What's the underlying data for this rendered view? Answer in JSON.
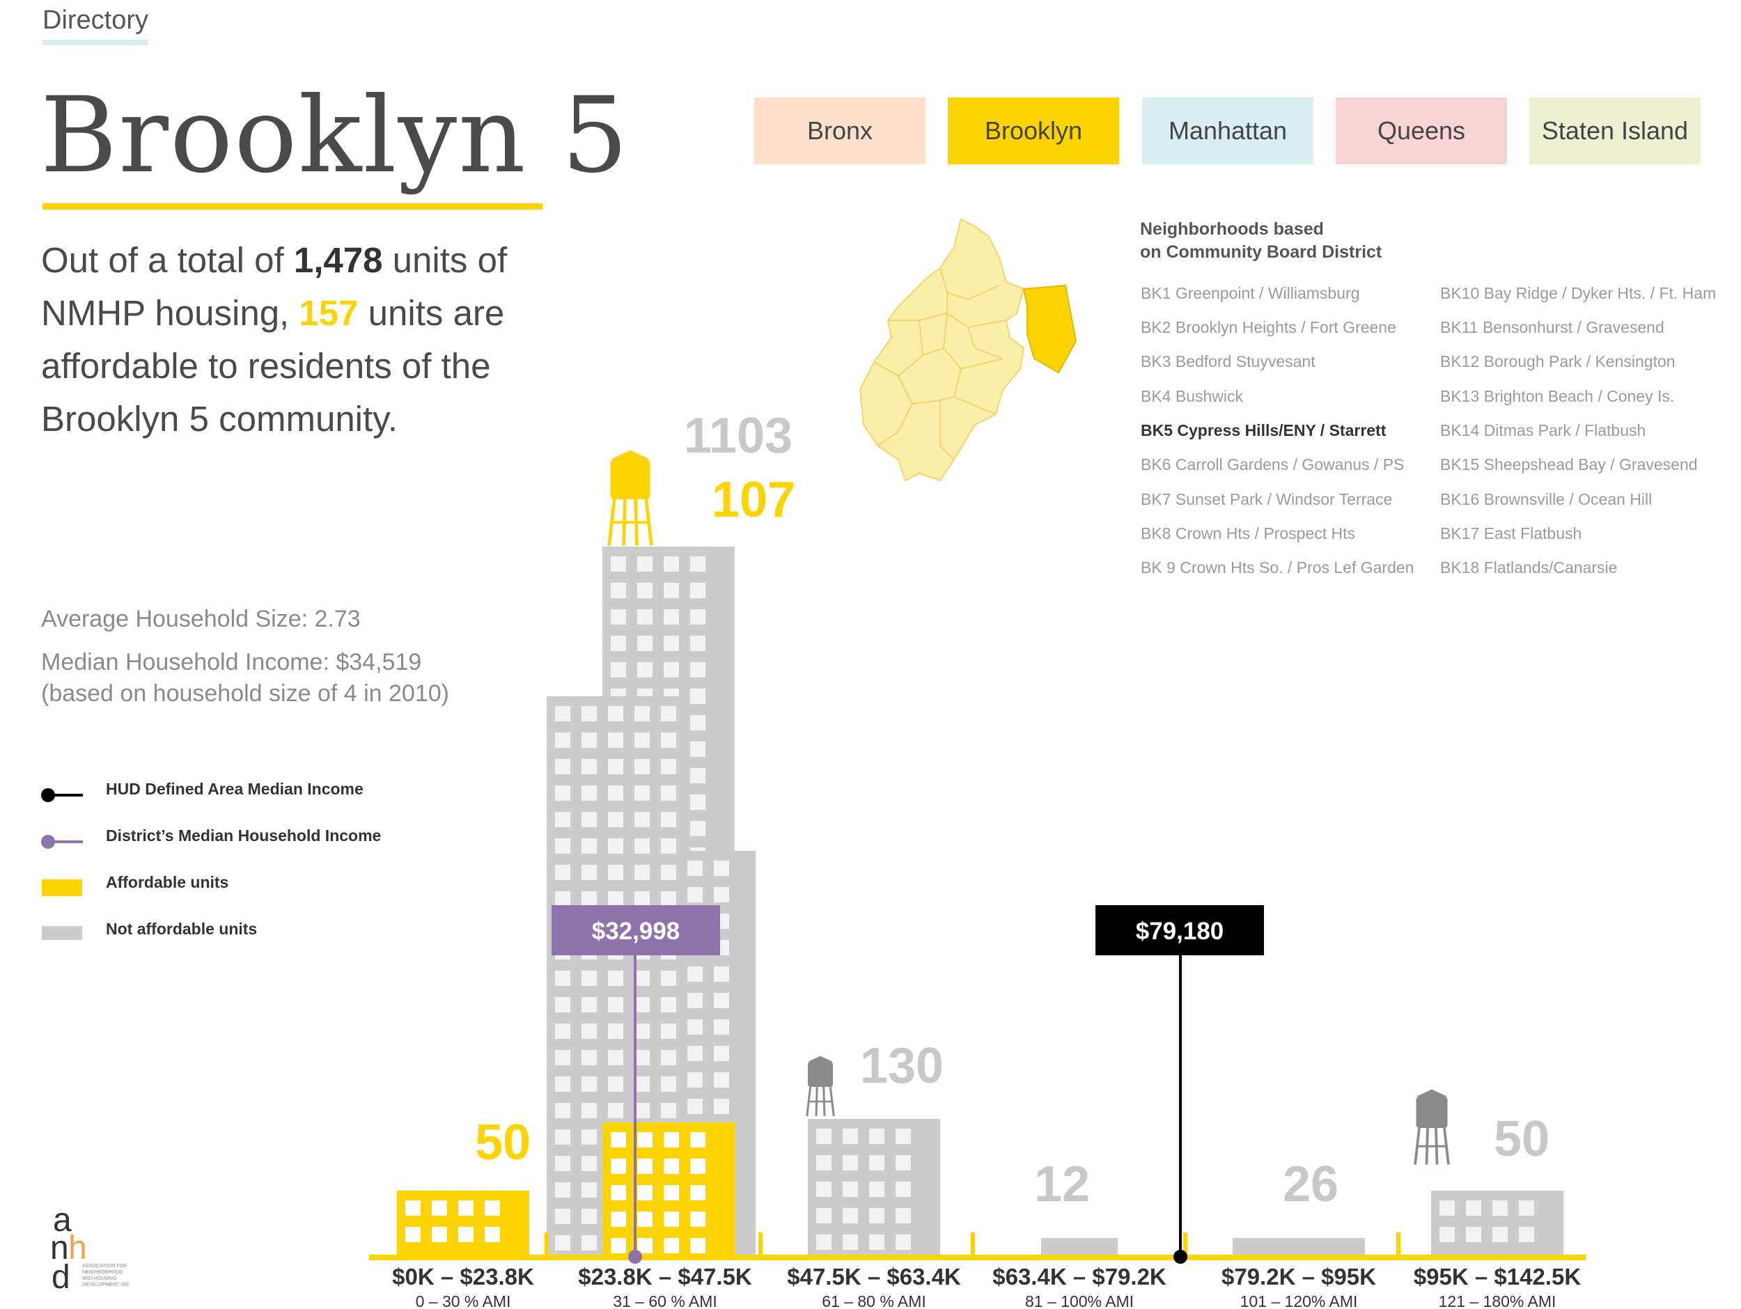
{
  "header": {
    "directory_label": "Directory",
    "title": "Brooklyn 5"
  },
  "summary": {
    "prefix": "Out of a total of ",
    "total_units": "1,478",
    "middle": " units of NMHP housing, ",
    "affordable_units": "157",
    "suffix": " units are affordable to residents of the Brooklyn 5 community."
  },
  "stats": {
    "household_size": "Average Household Size: 2.73",
    "median_income": "Median Household Income: $34,519",
    "median_note": "(based on household size of 4 in 2010)"
  },
  "boroughs": [
    {
      "label": "Bronx",
      "color": "#fde0cc",
      "selected": false
    },
    {
      "label": "Brooklyn",
      "color": "#fdd300",
      "selected": true
    },
    {
      "label": "Manhattan",
      "color": "#d8eef1",
      "selected": false
    },
    {
      "label": "Queens",
      "color": "#f8d3d5",
      "selected": false
    },
    {
      "label": "Staten Island",
      "color": "#edf1d2",
      "selected": false
    }
  ],
  "neighborhoods": {
    "heading_line1": "Neighborhoods based",
    "heading_line2": "on Community Board District",
    "left": [
      "BK1 Greenpoint / Williamsburg",
      "BK2 Brooklyn Heights / Fort Greene",
      "BK3 Bedford Stuyvesant",
      "BK4 Bushwick",
      "BK5 Cypress Hills/ENY / Starrett",
      "BK6 Carroll Gardens / Gowanus / PS",
      "BK7 Sunset Park / Windsor Terrace",
      "BK8 Crown Hts / Prospect Hts",
      "BK 9 Crown Hts So. / Pros Lef Garden"
    ],
    "right": [
      "BK10 Bay Ridge / Dyker Hts. / Ft. Ham",
      "BK11 Bensonhurst / Gravesend",
      "BK12 Borough Park / Kensington",
      "BK13 Brighton Beach / Coney Is.",
      "BK14 Ditmas Park / Flatbush",
      "BK15 Sheepshead Bay / Gravesend",
      "BK16 Brownsville / Ocean Hill",
      "BK17 East Flatbush",
      "BK18 Flatlands/Canarsie"
    ],
    "selected": "BK5 Cypress Hills/ENY / Starrett"
  },
  "legend": [
    {
      "label": "HUD Defined Area Median Income",
      "color": "#000000",
      "kind": "line"
    },
    {
      "label": "District’s Median Household Income",
      "color": "#8e72aa",
      "kind": "line"
    },
    {
      "label": "Affordable units",
      "color": "#fdd300",
      "kind": "box"
    },
    {
      "label": "Not affordable units",
      "color": "#cccccc",
      "kind": "box"
    }
  ],
  "chart_data": {
    "type": "bar",
    "categories": [
      "$0K – $23.8K",
      "$23.8K – $47.5K",
      "$47.5K – $63.4K",
      "$63.4K – $79.2K",
      "$79.2K – $95K",
      "$95K – $142.5K"
    ],
    "sublabels": [
      "0 – 30 % AMI",
      "31 – 60 % AMI",
      "61 – 80 % AMI",
      "81 – 100% AMI",
      "101 – 120% AMI",
      "121 – 180% AMI"
    ],
    "series": [
      {
        "name": "Affordable units",
        "values": [
          50,
          107,
          0,
          0,
          0,
          0
        ],
        "color": "#fdd300"
      },
      {
        "name": "Not affordable units",
        "values": [
          0,
          1103,
          130,
          12,
          26,
          50
        ],
        "color": "#cccccc"
      }
    ],
    "value_labels": [
      "50",
      "1103",
      "107",
      "130",
      "12",
      "26",
      "50"
    ],
    "markers": [
      {
        "name": "District’s Median Household Income",
        "label": "$32,998",
        "value": 32998,
        "color": "#8e72aa"
      },
      {
        "name": "HUD Defined Area Median Income",
        "label": "$79,180",
        "value": 79180,
        "color": "#000000"
      }
    ],
    "axis_color": "#fdd300"
  },
  "logo": {
    "text": "ASSOCIATION FOR NEIGHBORHOOD AND HOUSING DEVELOPMENT, INC",
    "accent": "#f3a24a"
  }
}
